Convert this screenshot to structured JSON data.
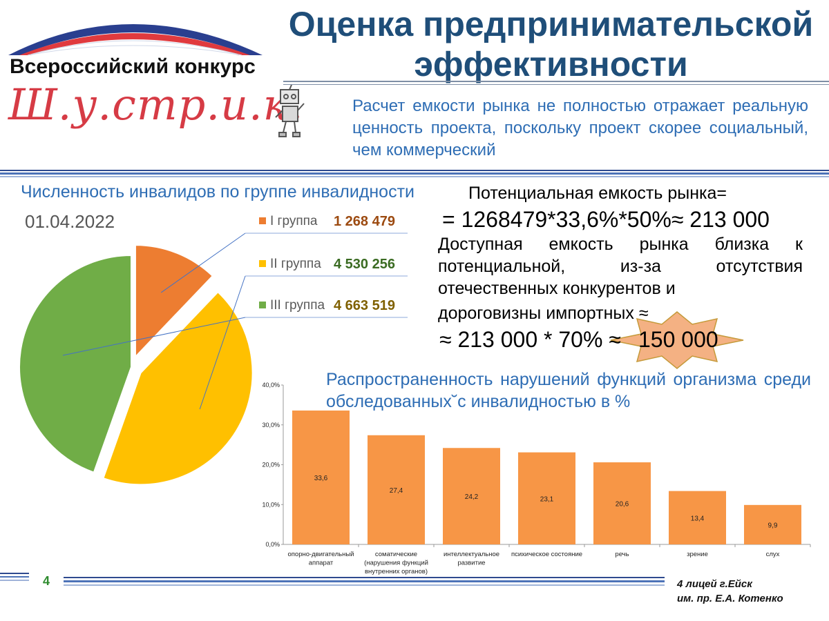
{
  "header": {
    "contest_name": "Всероссийский конкурс",
    "contest_logo_text": "Ш.у.стр.и.к.",
    "title": "Оценка предпринимательской эффективности"
  },
  "intro": {
    "text": "Расчет емкости рынка не полностью отражает реальную ценность проекта, поскольку проект скорее социальный, чем коммерческий"
  },
  "market": {
    "potential_label": "Потенциальная емкость рынка=",
    "formula": "= 1268479*33,6%*50%≈ 213 000",
    "accessible_text": "Доступная емкость рынка близка к потенциальной, из-за отсутствия отечественных конкурентов и",
    "accessible_text_end": "дороговизны импортных ≈",
    "result_part1": "≈ 213 000 * 70% ≈",
    "result_part2": "150 000"
  },
  "footer": {
    "page_number": "4",
    "school_line1": "4 лицей г.Ейск",
    "school_line2": "им. пр. Е.А. Котенко"
  },
  "colors": {
    "title": "#1f4e79",
    "accent_blue": "#2e6db4",
    "group1": "#ed7d31",
    "group2": "#ffc000",
    "group3": "#70ad47",
    "bar": "#f79646",
    "star": "#f4b183"
  },
  "chart_data": [
    {
      "type": "pie",
      "title": "Численность инвалидов по группе инвалидности",
      "subtitle": "01.04.2022",
      "categories": [
        "I группа",
        "II группа",
        "III группа"
      ],
      "values": [
        1268479,
        4530256,
        4663519
      ],
      "value_labels": [
        "1 268 479",
        "4 530 256",
        "4 663 519"
      ],
      "label_colors": [
        "#9c4a10",
        "#3a6b22",
        "#7f6000"
      ],
      "exploded": [
        true,
        true,
        false
      ],
      "legend": "right"
    },
    {
      "type": "bar",
      "title": "Распространенность нарушений функций организма среди обследованных˘с инвалидностью в %",
      "categories": [
        [
          "опорно-двигательный",
          "аппарат"
        ],
        [
          "соматические",
          "(нарушения функций",
          "внутренних органов)"
        ],
        [
          "интеллектуальное",
          "развитие"
        ],
        [
          "психическое состояние"
        ],
        [
          "речь"
        ],
        [
          "зрение"
        ],
        [
          "слух"
        ]
      ],
      "values": [
        33.6,
        27.4,
        24.2,
        23.1,
        20.6,
        13.4,
        9.9
      ],
      "value_labels": [
        "33,6",
        "27,4",
        "24,2",
        "23,1",
        "20,6",
        "13,4",
        "9,9"
      ],
      "y_ticks": [
        "0,0%",
        "10,0%",
        "20,0%",
        "30,0%",
        "40,0%"
      ],
      "ylim": [
        0,
        40
      ],
      "grid": false
    }
  ]
}
